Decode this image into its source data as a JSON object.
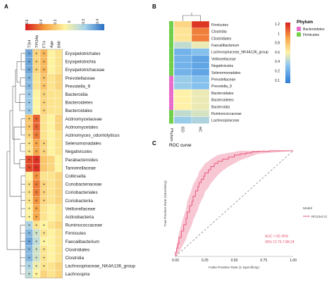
{
  "panels": {
    "a": "A",
    "b": "B",
    "c": "C"
  },
  "heatmap_a": {
    "scale_ticks": [
      "0.6",
      "0.4",
      "0.2",
      "0",
      "-0.2",
      "-0.4"
    ],
    "columns": [
      "TSH",
      "TPOAb",
      "FT4",
      "Age",
      "BMI"
    ],
    "rows": [
      "Erysipelotrichales",
      "Erysipelotrichia",
      "Erysipelotrichaceae",
      "Prevotellaceae",
      "Prevotella_9",
      "Bacteroidia",
      "Bacteroidetes",
      "Bacteroidales",
      "Actinomycetaceae",
      "Actinomycetales",
      "Actinomyces_odontolyticus",
      "Selenomonadales",
      "Negativicutes",
      "Parabacteroides",
      "Tannerellaceae",
      "Collinsella",
      "Coriobacteriaceae",
      "Coriobacteriales",
      "Coriobacteriia",
      "Veillonellaceae",
      "Actinobacteria",
      "Ruminococcaceae",
      "Firmicutes",
      "Faecalibacterium",
      "Clostridiales",
      "Clostridia",
      "Lachnospiraceae_NK4A136_group",
      "Lachnospira"
    ],
    "star": "+"
  },
  "heatmap_b": {
    "legend_title": "Phylum",
    "legend_items": [
      {
        "name": "Bacteroidetes",
        "color": "#e86cc9"
      },
      {
        "name": "Firmicutes",
        "color": "#6fcf4a"
      }
    ],
    "scale_ticks": [
      "1.2",
      "1",
      "0.8",
      "0.6",
      "0.4",
      "0.2",
      "0.1"
    ],
    "columns": [
      "GD",
      "HC"
    ],
    "side_label": "Phylum",
    "rows": [
      "Firmicutes",
      "Clostridia",
      "Clostridiales",
      "Faecalibacterium",
      "Lachnospiraceae_NK4A136_group",
      "Veillonellaceae",
      "Negativicutes",
      "Selenomonadales",
      "Prevotellaceae",
      "Prevotella_9",
      "Bacteroidales",
      "Bacteroidetes",
      "Bacteroidia",
      "Ruminococcaceae",
      "Lachnospiraceae"
    ]
  },
  "roc": {
    "title": "ROC curve",
    "xlabel": "False Positive Rate (1-Specificity)",
    "ylabel": "True Positive Rate (Sensitivity)",
    "xticks": [
      "0.00",
      "0.25",
      "0.50",
      "0.75",
      "1.00"
    ],
    "legend_title": "Model",
    "legend_item": "RF(10xCV)",
    "auc_text": "AUC = 82.45%",
    "ci_text": "95% CI:76.7-88.24"
  },
  "colors": {
    "accent_red": "#d7191c",
    "roc_line": "#e8577a",
    "roc_band": "#f4b6c6"
  },
  "chart_data": [
    {
      "type": "heatmap",
      "title": "",
      "columns": [
        "TSH",
        "TPOAb",
        "FT4",
        "Age",
        "BMI"
      ],
      "rows": [
        "Erysipelotrichales",
        "Erysipelotrichia",
        "Erysipelotrichaceae",
        "Prevotellaceae",
        "Prevotella_9",
        "Bacteroidia",
        "Bacteroidetes",
        "Bacteroidales",
        "Actinomycetaceae",
        "Actinomycetales",
        "Actinomyces_odontolyticus",
        "Selenomonadales",
        "Negativicutes",
        "Parabacteroides",
        "Tannerellaceae",
        "Collinsella",
        "Coriobacteriaceae",
        "Coriobacteriales",
        "Coriobacteriia",
        "Veillonellaceae",
        "Actinobacteria",
        "Ruminococcaceae",
        "Firmicutes",
        "Faecalibacterium",
        "Clostridiales",
        "Clostridia",
        "Lachnospiraceae_NK4A136_group",
        "Lachnospira"
      ],
      "range": [
        -0.5,
        0.6
      ],
      "values": [
        [
          -0.35,
          0.15,
          0.25,
          0.05,
          0.1
        ],
        [
          -0.35,
          0.15,
          0.25,
          0.05,
          0.1
        ],
        [
          -0.35,
          0.15,
          0.25,
          0.05,
          0.1
        ],
        [
          -0.3,
          0.1,
          0.2,
          0.1,
          0.15
        ],
        [
          -0.3,
          0.1,
          0.2,
          0.1,
          0.15
        ],
        [
          -0.25,
          0.05,
          0.15,
          0.1,
          0.1
        ],
        [
          -0.25,
          0.05,
          0.15,
          0.1,
          0.1
        ],
        [
          -0.25,
          0.05,
          0.15,
          0.1,
          0.1
        ],
        [
          0.2,
          0.45,
          0.1,
          0.05,
          0.15
        ],
        [
          0.2,
          0.45,
          0.1,
          0.05,
          0.15
        ],
        [
          0.15,
          0.4,
          0.1,
          0.05,
          0.1
        ],
        [
          0.1,
          0.3,
          0.15,
          0.05,
          0.1
        ],
        [
          0.1,
          0.3,
          0.15,
          0.05,
          0.1
        ],
        [
          0.5,
          0.55,
          0.2,
          0.15,
          0.05
        ],
        [
          0.5,
          0.55,
          0.2,
          0.15,
          0.05
        ],
        [
          0.05,
          0.35,
          0.1,
          0.1,
          0.15
        ],
        [
          0.1,
          0.4,
          0.15,
          0.1,
          0.15
        ],
        [
          0.1,
          0.4,
          0.15,
          0.1,
          0.15
        ],
        [
          0.1,
          0.35,
          0.15,
          0.1,
          0.15
        ],
        [
          0.05,
          0.3,
          0.1,
          0.05,
          0.1
        ],
        [
          0.05,
          0.3,
          0.1,
          0.05,
          0.1
        ],
        [
          -0.2,
          0.1,
          0.05,
          0.1,
          0.15
        ],
        [
          -0.3,
          -0.1,
          0.1,
          0.05,
          0.1
        ],
        [
          -0.35,
          -0.15,
          0.05,
          0.05,
          0.1
        ],
        [
          -0.3,
          -0.1,
          0.1,
          0.05,
          0.1
        ],
        [
          -0.3,
          -0.1,
          0.1,
          0.05,
          0.1
        ],
        [
          -0.2,
          0.0,
          0.1,
          0.1,
          0.15
        ],
        [
          -0.15,
          0.05,
          0.15,
          0.1,
          0.15
        ]
      ],
      "stars": [
        [
          1,
          1,
          1,
          0,
          0
        ],
        [
          1,
          1,
          1,
          0,
          0
        ],
        [
          1,
          1,
          1,
          0,
          0
        ],
        [
          1,
          0,
          1,
          0,
          0
        ],
        [
          1,
          0,
          1,
          0,
          0
        ],
        [
          1,
          0,
          1,
          0,
          0
        ],
        [
          1,
          0,
          1,
          0,
          0
        ],
        [
          1,
          0,
          1,
          0,
          0
        ],
        [
          1,
          1,
          0,
          0,
          0
        ],
        [
          1,
          1,
          0,
          0,
          0
        ],
        [
          1,
          1,
          0,
          0,
          0
        ],
        [
          1,
          1,
          1,
          0,
          0
        ],
        [
          1,
          1,
          1,
          0,
          0
        ],
        [
          1,
          1,
          0,
          0,
          0
        ],
        [
          1,
          1,
          0,
          0,
          0
        ],
        [
          0,
          1,
          0,
          0,
          0
        ],
        [
          1,
          1,
          1,
          0,
          0
        ],
        [
          1,
          1,
          1,
          0,
          0
        ],
        [
          1,
          1,
          1,
          0,
          0
        ],
        [
          1,
          1,
          0,
          0,
          0
        ],
        [
          1,
          1,
          0,
          0,
          0
        ],
        [
          1,
          1,
          1,
          0,
          0
        ],
        [
          1,
          1,
          1,
          0,
          0
        ],
        [
          1,
          1,
          1,
          0,
          0
        ],
        [
          1,
          1,
          1,
          0,
          0
        ],
        [
          1,
          1,
          1,
          0,
          0
        ],
        [
          1,
          1,
          1,
          0,
          0
        ],
        [
          1,
          1,
          0,
          0,
          0
        ]
      ],
      "scale_colors": [
        "#d7191c",
        "#f4a040",
        "#fef3a0",
        "#a8d3ea",
        "#2b6fc4"
      ]
    },
    {
      "type": "heatmap",
      "title": "",
      "columns": [
        "GD",
        "HC"
      ],
      "rows": [
        "Firmicutes",
        "Clostridia",
        "Clostridiales",
        "Faecalibacterium",
        "Lachnospiraceae_NK4A136_group",
        "Veillonellaceae",
        "Negativicutes",
        "Selenomonadales",
        "Prevotellaceae",
        "Prevotella_9",
        "Bacteroidales",
        "Bacteroidetes",
        "Bacteroidia",
        "Ruminococcaceae",
        "Lachnospiraceae"
      ],
      "phylum": [
        "Firmicutes",
        "Firmicutes",
        "Firmicutes",
        "Firmicutes",
        "Firmicutes",
        "Firmicutes",
        "Firmicutes",
        "Firmicutes",
        "Bacteroidetes",
        "Bacteroidetes",
        "Bacteroidetes",
        "Bacteroidetes",
        "Bacteroidetes",
        "Firmicutes",
        "Firmicutes"
      ],
      "range": [
        0.1,
        1.2
      ],
      "values": [
        [
          0.75,
          1.15
        ],
        [
          0.7,
          1.0
        ],
        [
          0.7,
          1.0
        ],
        [
          0.5,
          0.6
        ],
        [
          0.3,
          0.35
        ],
        [
          0.3,
          0.25
        ],
        [
          0.3,
          0.25
        ],
        [
          0.3,
          0.25
        ],
        [
          0.4,
          0.35
        ],
        [
          0.4,
          0.35
        ],
        [
          0.65,
          0.6
        ],
        [
          0.65,
          0.6
        ],
        [
          0.65,
          0.6
        ],
        [
          0.5,
          0.55
        ],
        [
          0.4,
          0.45
        ]
      ],
      "scale_colors": [
        "#2c7bd6",
        "#8fc8f0",
        "#fff2a8",
        "#f7a446",
        "#d91e1e"
      ]
    },
    {
      "type": "line",
      "title": "ROC curve",
      "xlabel": "False Positive Rate (1-Specificity)",
      "ylabel": "True Positive Rate (Sensitivity)",
      "xlim": [
        0,
        1
      ],
      "ylim": [
        0,
        1
      ],
      "series": [
        {
          "name": "RF(10xCV)",
          "x": [
            0.0,
            0.01,
            0.02,
            0.03,
            0.05,
            0.07,
            0.09,
            0.1,
            0.12,
            0.14,
            0.15,
            0.17,
            0.19,
            0.2,
            0.22,
            0.24,
            0.25,
            0.28,
            0.3,
            0.33,
            0.36,
            0.4,
            0.45,
            0.5,
            0.55,
            0.6,
            0.65,
            0.7,
            0.8,
            0.9,
            1.0
          ],
          "y": [
            0.0,
            0.04,
            0.08,
            0.12,
            0.18,
            0.24,
            0.3,
            0.36,
            0.42,
            0.48,
            0.52,
            0.57,
            0.62,
            0.66,
            0.7,
            0.73,
            0.76,
            0.79,
            0.82,
            0.85,
            0.88,
            0.9,
            0.92,
            0.94,
            0.96,
            0.97,
            0.98,
            0.99,
            0.995,
            1.0,
            1.0
          ],
          "band_low": [
            0.0,
            0.0,
            0.02,
            0.04,
            0.08,
            0.12,
            0.16,
            0.2,
            0.25,
            0.3,
            0.34,
            0.39,
            0.44,
            0.48,
            0.53,
            0.57,
            0.61,
            0.65,
            0.69,
            0.73,
            0.77,
            0.81,
            0.85,
            0.88,
            0.91,
            0.93,
            0.95,
            0.97,
            0.98,
            0.99,
            1.0
          ],
          "band_high": [
            0.0,
            0.1,
            0.16,
            0.22,
            0.3,
            0.38,
            0.45,
            0.52,
            0.58,
            0.64,
            0.68,
            0.72,
            0.76,
            0.8,
            0.83,
            0.86,
            0.88,
            0.9,
            0.92,
            0.94,
            0.96,
            0.97,
            0.98,
            0.99,
            1.0,
            1.0,
            1.0,
            1.0,
            1.0,
            1.0,
            1.0
          ]
        }
      ]
    }
  ]
}
